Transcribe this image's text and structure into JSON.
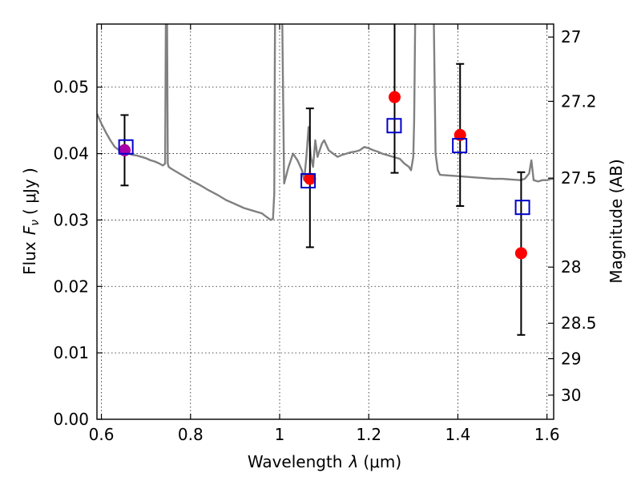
{
  "chart_data": {
    "type": "scatter",
    "title": "",
    "xlabel": "Wavelength",
    "xlabel_symbol": "λ",
    "xlabel_unit": "(μm)",
    "ylabel": "Flux",
    "ylabel_symbol": "F",
    "ylabel_sub": "ν",
    "ylabel_unit": "( μJy )",
    "y2label": "Magnitude (AB)",
    "xlim": [
      0.59,
      1.615
    ],
    "ylim": [
      0.0,
      0.0595
    ],
    "grid": true,
    "x_ticks": [
      {
        "value": 0.6,
        "label": "0.6"
      },
      {
        "value": 0.8,
        "label": "0.8"
      },
      {
        "value": 1.0,
        "label": "1"
      },
      {
        "value": 1.2,
        "label": "1.2"
      },
      {
        "value": 1.4,
        "label": "1.4"
      },
      {
        "value": 1.6,
        "label": "1.6"
      }
    ],
    "y_ticks": [
      {
        "value": 0.0,
        "label": "0.00"
      },
      {
        "value": 0.01,
        "label": "0.01"
      },
      {
        "value": 0.02,
        "label": "0.02"
      },
      {
        "value": 0.03,
        "label": "0.03"
      },
      {
        "value": 0.04,
        "label": "0.04"
      },
      {
        "value": 0.05,
        "label": "0.05"
      }
    ],
    "y2_ticks": [
      {
        "value": 27,
        "label": "27"
      },
      {
        "value": 27.2,
        "label": "27.2"
      },
      {
        "value": 27.5,
        "label": "27.5"
      },
      {
        "value": 28,
        "label": "28"
      },
      {
        "value": 28.5,
        "label": "28.5"
      },
      {
        "value": 29,
        "label": "29"
      },
      {
        "value": 30,
        "label": "30"
      }
    ],
    "observed": {
      "color": "#ff0000",
      "points": [
        {
          "x": 0.652,
          "y": 0.0405,
          "err_lo": 0.0352,
          "err_hi": 0.0458
        },
        {
          "x": 1.068,
          "y": 0.0362,
          "err_lo": 0.0259,
          "err_hi": 0.0468
        },
        {
          "x": 1.258,
          "y": 0.0485,
          "err_lo": 0.0371,
          "err_hi": 0.06
        },
        {
          "x": 1.405,
          "y": 0.0428,
          "err_lo": 0.0321,
          "err_hi": 0.0535
        },
        {
          "x": 1.542,
          "y": 0.025,
          "err_lo": 0.0127,
          "err_hi": 0.0372
        }
      ]
    },
    "model_photometry": {
      "color": "#0000cc",
      "points": [
        {
          "x": 0.655,
          "y": 0.041
        },
        {
          "x": 1.064,
          "y": 0.0359
        },
        {
          "x": 1.257,
          "y": 0.0442
        },
        {
          "x": 1.404,
          "y": 0.0412
        },
        {
          "x": 1.545,
          "y": 0.0319
        }
      ]
    },
    "overlap_marker": {
      "x": 0.652,
      "y": 0.0405,
      "color": "#aa00aa"
    },
    "spectrum": {
      "color": "#808080",
      "x": [
        0.59,
        0.6,
        0.61,
        0.62,
        0.63,
        0.64,
        0.65,
        0.66,
        0.67,
        0.68,
        0.69,
        0.7,
        0.71,
        0.72,
        0.73,
        0.738,
        0.743,
        0.745,
        0.747,
        0.749,
        0.751,
        0.755,
        0.76,
        0.78,
        0.8,
        0.82,
        0.84,
        0.86,
        0.88,
        0.9,
        0.92,
        0.94,
        0.96,
        0.97,
        0.98,
        0.985,
        0.988,
        0.99,
        0.992,
        0.995,
        1.0,
        1.005,
        1.01,
        1.02,
        1.03,
        1.04,
        1.05,
        1.055,
        1.06,
        1.065,
        1.07,
        1.075,
        1.08,
        1.085,
        1.09,
        1.095,
        1.1,
        1.11,
        1.12,
        1.13,
        1.14,
        1.15,
        1.16,
        1.17,
        1.18,
        1.19,
        1.2,
        1.21,
        1.22,
        1.23,
        1.24,
        1.25,
        1.26,
        1.27,
        1.28,
        1.29,
        1.295,
        1.3,
        1.302,
        1.305,
        1.31,
        1.32,
        1.33,
        1.34,
        1.345,
        1.35,
        1.355,
        1.36,
        1.38,
        1.4,
        1.42,
        1.44,
        1.46,
        1.48,
        1.5,
        1.52,
        1.54,
        1.55,
        1.56,
        1.565,
        1.57,
        1.58,
        1.59,
        1.6,
        1.61,
        1.615
      ],
      "y": [
        0.046,
        0.0445,
        0.0432,
        0.042,
        0.041,
        0.0405,
        0.0402,
        0.04,
        0.0398,
        0.0397,
        0.0395,
        0.0393,
        0.039,
        0.0388,
        0.0385,
        0.0382,
        0.0385,
        0.065,
        0.065,
        0.0385,
        0.038,
        0.0378,
        0.0376,
        0.0368,
        0.036,
        0.0353,
        0.0345,
        0.0338,
        0.033,
        0.0324,
        0.0318,
        0.0314,
        0.031,
        0.0305,
        0.03,
        0.0302,
        0.034,
        0.065,
        0.065,
        0.065,
        0.065,
        0.065,
        0.0355,
        0.038,
        0.04,
        0.039,
        0.0375,
        0.036,
        0.0395,
        0.044,
        0.0395,
        0.038,
        0.042,
        0.0395,
        0.0405,
        0.0415,
        0.042,
        0.0405,
        0.04,
        0.0395,
        0.0398,
        0.04,
        0.0402,
        0.0403,
        0.0405,
        0.041,
        0.0408,
        0.0405,
        0.0403,
        0.04,
        0.0398,
        0.0396,
        0.0394,
        0.0392,
        0.0385,
        0.038,
        0.0375,
        0.0395,
        0.045,
        0.065,
        0.065,
        0.065,
        0.065,
        0.065,
        0.065,
        0.04,
        0.0375,
        0.0368,
        0.0367,
        0.0366,
        0.0365,
        0.0364,
        0.0363,
        0.0362,
        0.0362,
        0.0361,
        0.036,
        0.0362,
        0.037,
        0.039,
        0.036,
        0.0358,
        0.036,
        0.036,
        0.0362,
        0.0362
      ]
    }
  }
}
